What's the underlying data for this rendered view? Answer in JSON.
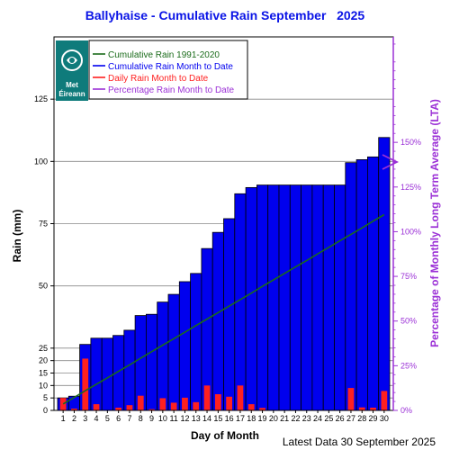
{
  "chart_data": {
    "type": "bar",
    "title": "Ballyhaise - Cumulative Rain September   2025",
    "xlabel": "Day of Month",
    "ylabel": "Rain (mm)",
    "y2label": "Percentage  of Monthly Long Term Average (LTA)",
    "footer": "Latest Data 30 September 2025",
    "logo_text": [
      "Met",
      "Éireann"
    ],
    "x": [
      1,
      2,
      3,
      4,
      5,
      6,
      7,
      8,
      9,
      10,
      11,
      12,
      13,
      14,
      15,
      16,
      17,
      18,
      19,
      20,
      21,
      22,
      23,
      24,
      25,
      26,
      27,
      28,
      29,
      30
    ],
    "x_tick_labels": [
      "1",
      "2",
      "3",
      "4",
      "5",
      "6",
      "7",
      "8",
      "9",
      "10",
      "11",
      "12",
      "13",
      "14",
      "15",
      "16",
      "17",
      "18",
      "19",
      "20",
      "21",
      "22",
      "23",
      "24",
      "25",
      "26",
      "27",
      "28",
      "29",
      "30"
    ],
    "ylim": [
      0,
      150
    ],
    "y_ticks": [
      0,
      5,
      10,
      15,
      20,
      25,
      50,
      75,
      100,
      125
    ],
    "y_tick_labels": [
      "0",
      "5",
      "10",
      "15",
      "20",
      "25",
      "50",
      "75",
      "100",
      "125"
    ],
    "y2lim": [
      0,
      209
    ],
    "y2_ticks": [
      0,
      25,
      50,
      75,
      100,
      125,
      150
    ],
    "y2_tick_labels": [
      "0%",
      "25%",
      "50%",
      "75%",
      "100%",
      "125%",
      "150%"
    ],
    "legend_placement": "top-left",
    "grid": true,
    "series": [
      {
        "name": "Cumulative Rain 1991-2020",
        "kind": "line",
        "color": "#1a6b1a",
        "values": [
          2.6,
          5.2,
          7.9,
          10.5,
          13.1,
          15.7,
          18.3,
          21.0,
          23.6,
          26.2,
          28.8,
          31.4,
          34.1,
          36.7,
          39.3,
          41.9,
          44.5,
          47.1,
          49.8,
          52.4,
          55.0,
          57.6,
          60.2,
          62.9,
          65.5,
          68.1,
          70.7,
          73.3,
          76.0,
          78.6
        ]
      },
      {
        "name": "Cumulative Rain Month to Date",
        "kind": "bar",
        "color": "#0000ee",
        "values": [
          5.0,
          5.7,
          26.5,
          29.0,
          29.0,
          30.1,
          32.2,
          38.1,
          38.6,
          43.5,
          46.6,
          51.7,
          55.0,
          65.0,
          71.5,
          77.0,
          87.0,
          89.5,
          90.5,
          90.5,
          90.5,
          90.5,
          90.5,
          90.5,
          90.5,
          90.5,
          99.5,
          100.7,
          101.8,
          109.6
        ]
      },
      {
        "name": "Daily Rain Month to Date",
        "kind": "bar",
        "color": "#ff2020",
        "values": [
          5.0,
          0.7,
          20.8,
          2.5,
          0.0,
          1.1,
          2.1,
          5.9,
          0.5,
          4.9,
          3.1,
          5.1,
          3.3,
          10.0,
          6.5,
          5.5,
          10.0,
          2.5,
          1.0,
          0.0,
          0.0,
          0.0,
          0.0,
          0.0,
          0.0,
          0.0,
          9.0,
          1.2,
          1.1,
          7.8
        ]
      },
      {
        "name": "Percentage Rain Month to Date",
        "kind": "marker",
        "color": "#9b30d6",
        "value": 139
      }
    ]
  }
}
